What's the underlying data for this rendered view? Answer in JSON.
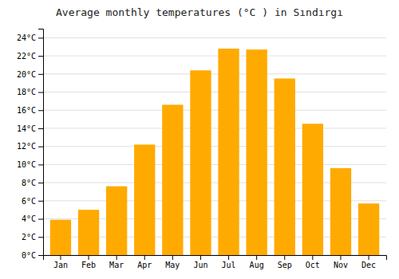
{
  "chart_data": {
    "type": "bar",
    "title": "Average monthly temperatures (°C ) in Sındırgı",
    "categories": [
      "Jan",
      "Feb",
      "Mar",
      "Apr",
      "May",
      "Jun",
      "Jul",
      "Aug",
      "Sep",
      "Oct",
      "Nov",
      "Dec"
    ],
    "values": [
      3.9,
      5.0,
      7.6,
      12.2,
      16.6,
      20.4,
      22.8,
      22.7,
      19.5,
      14.5,
      9.6,
      5.7
    ],
    "color": "#FFAA00",
    "ylim": [
      0,
      25
    ],
    "yticks": [
      {
        "value": 0,
        "label": "0°C"
      },
      {
        "value": 2,
        "label": "2°C"
      },
      {
        "value": 4,
        "label": "4°C"
      },
      {
        "value": 6,
        "label": "6°C"
      },
      {
        "value": 8,
        "label": "8°C"
      },
      {
        "value": 10,
        "label": "10°C"
      },
      {
        "value": 12,
        "label": "12°C"
      },
      {
        "value": 14,
        "label": "14°C"
      },
      {
        "value": 16,
        "label": "16°C"
      },
      {
        "value": 18,
        "label": "18°C"
      },
      {
        "value": 20,
        "label": "20°C"
      },
      {
        "value": 22,
        "label": "22°C"
      },
      {
        "value": 24,
        "label": "24°C"
      }
    ],
    "grid": true
  }
}
